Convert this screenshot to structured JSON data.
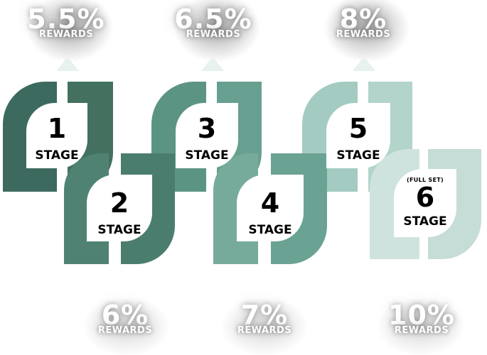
{
  "rewards_top": [
    {
      "percent": "5.5%",
      "label": "REWARDS"
    },
    {
      "percent": "6.5%",
      "label": "REWARDS"
    },
    {
      "percent": "8%",
      "label": "REWARDS"
    }
  ],
  "rewards_bottom": [
    {
      "percent": "6%",
      "label": "REWARDS"
    },
    {
      "percent": "7%",
      "label": "REWARDS"
    },
    {
      "percent": "10%",
      "label": "REWARDS"
    }
  ],
  "stages": [
    {
      "number": "1",
      "label": "STAGE",
      "color": "#3d6a5e"
    },
    {
      "number": "2",
      "label": "STAGE",
      "color": "#4f8272"
    },
    {
      "number": "3",
      "label": "STAGE",
      "color": "#5c9484"
    },
    {
      "number": "4",
      "label": "STAGE",
      "color": "#76ab9c"
    },
    {
      "number": "5",
      "label": "STAGE",
      "color": "#a4cbc1"
    },
    {
      "number": "6",
      "label": "STAGE",
      "note": "(FULL SET)",
      "color": "#cfe3de"
    }
  ]
}
